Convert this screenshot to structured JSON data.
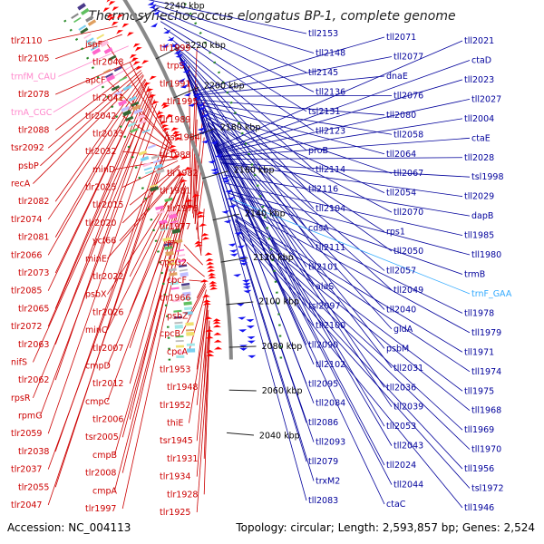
{
  "title": "Thermosynechococcus elongatus BP-1, complete genome",
  "footer": {
    "accession": "Accession: NC_004113",
    "summary": "Topology: circular; Length: 2,593,857 bp; Genes: 2,524"
  },
  "colors": {
    "forward_label": "#cc0000",
    "reverse_label": "#00009b",
    "rna_label": "#ff88cc",
    "rna_label_alt": "#33aaff",
    "forward_arrow": "#ff0000",
    "reverse_arrow": "#1414f0",
    "axis": "#888888",
    "dots": "#2a8a2a"
  },
  "ticks": [
    {
      "label": "2240 kbp",
      "angle": 30.0
    },
    {
      "label": "2220 kbp",
      "angle": 26.5
    },
    {
      "label": "2200 kbp",
      "angle": 23.0
    },
    {
      "label": "2180 kbp",
      "angle": 19.5
    },
    {
      "label": "2160 kbp",
      "angle": 16.0
    },
    {
      "label": "2140 kbp",
      "angle": 12.5
    },
    {
      "label": "2120 kbp",
      "angle": 9.0
    },
    {
      "label": "2100 kbp",
      "angle": 5.5
    },
    {
      "label": "2080 kbp",
      "angle": 2.0
    },
    {
      "label": "2060 kbp",
      "angle": -1.5
    },
    {
      "label": "2040 kbp",
      "angle": -5.0
    }
  ],
  "left_labels": [
    {
      "text": "tlr2105",
      "angle": 29.6
    },
    {
      "text": "tlr2110",
      "angle": 30.4
    },
    {
      "text": "tlr2078",
      "angle": 27.2
    },
    {
      "text": "trnA_CGC",
      "angle": 26.9,
      "kind": "rna"
    },
    {
      "text": "trnfM_CAU",
      "angle": 28.5,
      "kind": "rna"
    },
    {
      "text": "psbP",
      "angle": 26.0
    },
    {
      "text": "tlr2088",
      "angle": 26.6
    },
    {
      "text": "tsr2092",
      "angle": 26.2
    },
    {
      "text": "recA",
      "angle": 25.8
    },
    {
      "text": "tlr2066",
      "angle": 25.1
    },
    {
      "text": "tlr2074",
      "angle": 25.4
    },
    {
      "text": "tlr2082",
      "angle": 25.7
    },
    {
      "text": "tlr2065",
      "angle": 24.7
    },
    {
      "text": "tlr2073",
      "angle": 25.0
    },
    {
      "text": "tlr2081",
      "angle": 25.3
    },
    {
      "text": "tlr2085",
      "angle": 25.0
    },
    {
      "text": "tlr2063",
      "angle": 24.2
    },
    {
      "text": "tlr2072",
      "angle": 24.4
    },
    {
      "text": "tlr2062",
      "angle": 23.8
    },
    {
      "text": "nifS",
      "angle": 23.9
    },
    {
      "text": "rpsR",
      "angle": 23.5
    },
    {
      "text": "rpmG",
      "angle": 23.1
    },
    {
      "text": "tlr2059",
      "angle": 22.5
    },
    {
      "text": "tlr2038",
      "angle": 20.6
    },
    {
      "text": "tlr2037",
      "angle": 20.1
    },
    {
      "text": "ispF",
      "angle": 19.6
    },
    {
      "text": "tlr2047",
      "angle": 19.8
    },
    {
      "text": "tlr2055",
      "angle": 20.1
    },
    {
      "text": "apcF",
      "angle": 19.2
    },
    {
      "text": "tlr2041",
      "angle": 19.2
    },
    {
      "text": "tlr2048",
      "angle": 19.5
    },
    {
      "text": "tlr2033",
      "angle": 18.7
    },
    {
      "text": "tlr2042",
      "angle": 18.8
    },
    {
      "text": "minD",
      "angle": 18.2
    },
    {
      "text": "tlr2025",
      "angle": 18.0
    },
    {
      "text": "tlr2032",
      "angle": 18.3
    },
    {
      "text": "tlr2015",
      "angle": 17.6
    },
    {
      "text": "tlr2020",
      "angle": 17.5
    },
    {
      "text": "ycf66",
      "angle": 17.1
    },
    {
      "text": "minE",
      "angle": 17.0
    },
    {
      "text": "tlr2022",
      "angle": 16.9
    },
    {
      "text": "psbX",
      "angle": 16.6
    },
    {
      "text": "minC",
      "angle": 16.4
    },
    {
      "text": "tlr2026",
      "angle": 16.6
    },
    {
      "text": "cmpD",
      "angle": 16.0
    },
    {
      "text": "tlr2007",
      "angle": 16.1
    },
    {
      "text": "cmpC",
      "angle": 15.6
    },
    {
      "text": "tlr2006",
      "angle": 15.6
    },
    {
      "text": "tlr2012",
      "angle": 15.8
    },
    {
      "text": "cmpB",
      "angle": 15.0
    },
    {
      "text": "tsr2005",
      "angle": 15.1
    },
    {
      "text": "tlr1997",
      "angle": 14.5
    },
    {
      "text": "cmpA",
      "angle": 14.6
    },
    {
      "text": "tlr2008",
      "angle": 14.8
    },
    {
      "text": "trpS",
      "angle": 14.0
    },
    {
      "text": "tlr1999",
      "angle": 14.1
    },
    {
      "text": "tlr1991",
      "angle": 13.4
    },
    {
      "text": "tlr1989",
      "angle": 13.0
    },
    {
      "text": "tlr1995",
      "angle": 13.1
    },
    {
      "text": "tsr1984",
      "angle": 12.5
    },
    {
      "text": "tlr1988",
      "angle": 12.5
    },
    {
      "text": "tlr1982",
      "angle": 12.0
    },
    {
      "text": "tlr1981",
      "angle": 11.2
    },
    {
      "text": "tlr1976",
      "angle": 10.0
    },
    {
      "text": "tlr1977",
      "angle": 9.8
    },
    {
      "text": "ffh",
      "angle": 9.0
    },
    {
      "text": "cpcG2",
      "angle": 8.0
    },
    {
      "text": "cpcF",
      "angle": 7.6
    },
    {
      "text": "tlr1966",
      "angle": 7.6
    },
    {
      "text": "psbZ",
      "angle": 7.4
    },
    {
      "text": "cpcB",
      "angle": 7.2
    },
    {
      "text": "cpcA",
      "angle": 6.9
    },
    {
      "text": "tlr1953",
      "angle": 6.5
    },
    {
      "text": "tlr1948",
      "angle": 6.0
    },
    {
      "text": "tlr1952",
      "angle": 6.0
    },
    {
      "text": "thiE",
      "angle": 5.6
    },
    {
      "text": "tsr1945",
      "angle": 5.2
    },
    {
      "text": "tlr1931",
      "angle": 4.3
    },
    {
      "text": "tlr1934",
      "angle": 4.3
    },
    {
      "text": "tlr1928",
      "angle": 3.8
    },
    {
      "text": "tlr1925",
      "angle": 3.3
    }
  ],
  "right_labels": [
    {
      "text": "tll2153",
      "angle": 31.0
    },
    {
      "text": "tll2148",
      "angle": 30.6
    },
    {
      "text": "tll2145",
      "angle": 30.2
    },
    {
      "text": "tsl2131",
      "angle": 29.0
    },
    {
      "text": "tll2136",
      "angle": 29.5
    },
    {
      "text": "tll2123",
      "angle": 28.4
    },
    {
      "text": "proB",
      "angle": 27.6
    },
    {
      "text": "tll2114",
      "angle": 27.0
    },
    {
      "text": "tll2104",
      "angle": 26.6
    },
    {
      "text": "tll2116",
      "angle": 26.9
    },
    {
      "text": "cdsA",
      "angle": 26.3
    },
    {
      "text": "tll2101",
      "angle": 26.1
    },
    {
      "text": "tsl2097",
      "angle": 25.6
    },
    {
      "text": "alaS",
      "angle": 25.7
    },
    {
      "text": "tll2111",
      "angle": 26.2
    },
    {
      "text": "tll2090",
      "angle": 25.1
    },
    {
      "text": "tll2100",
      "angle": 25.3
    },
    {
      "text": "tll2095",
      "angle": 24.8
    },
    {
      "text": "tll2102",
      "angle": 25.0
    },
    {
      "text": "tll2084",
      "angle": 24.3
    },
    {
      "text": "tll2086",
      "angle": 24.0
    },
    {
      "text": "tll2079",
      "angle": 23.8
    },
    {
      "text": "tll2093",
      "angle": 24.0
    },
    {
      "text": "tll2083",
      "angle": 23.4
    },
    {
      "text": "trxM2",
      "angle": 23.5
    },
    {
      "text": "tll2071",
      "angle": 22.8
    },
    {
      "text": "dnaE",
      "angle": 22.5
    },
    {
      "text": "tll2076",
      "angle": 22.4
    },
    {
      "text": "tll2077",
      "angle": 22.6
    },
    {
      "text": "tll2058",
      "angle": 21.9
    },
    {
      "text": "tll2064",
      "angle": 21.7
    },
    {
      "text": "tll2080",
      "angle": 22.1
    },
    {
      "text": "tll2054",
      "angle": 21.2
    },
    {
      "text": "tll2067",
      "angle": 21.3
    },
    {
      "text": "rps1",
      "angle": 20.7
    },
    {
      "text": "tll2050",
      "angle": 20.7
    },
    {
      "text": "tll2070",
      "angle": 20.9
    },
    {
      "text": "tll2057",
      "angle": 20.4
    },
    {
      "text": "tll2040",
      "angle": 20.0
    },
    {
      "text": "tll2049",
      "angle": 20.1
    },
    {
      "text": "gldA",
      "angle": 19.9
    },
    {
      "text": "tll2031",
      "angle": 19.4
    },
    {
      "text": "tll2036",
      "angle": 19.4
    },
    {
      "text": "psbM",
      "angle": 19.6
    },
    {
      "text": "tll2039",
      "angle": 19.0
    },
    {
      "text": "tll2024",
      "angle": 18.6
    },
    {
      "text": "tll2043",
      "angle": 18.7
    },
    {
      "text": "tll2053",
      "angle": 19.0
    },
    {
      "text": "ctaC",
      "angle": 18.2
    },
    {
      "text": "tll2021",
      "angle": 18.1
    },
    {
      "text": "tll2044",
      "angle": 18.3
    },
    {
      "text": "ctaD",
      "angle": 17.8
    },
    {
      "text": "tll2023",
      "angle": 17.7
    },
    {
      "text": "tll2027",
      "angle": 17.6
    },
    {
      "text": "tll2004",
      "angle": 17.3
    },
    {
      "text": "ctaE",
      "angle": 17.3
    },
    {
      "text": "tll2028",
      "angle": 17.1
    },
    {
      "text": "tsl1998",
      "angle": 16.8
    },
    {
      "text": "tll2029",
      "angle": 16.8
    },
    {
      "text": "dapB",
      "angle": 15.8
    },
    {
      "text": "tll1985",
      "angle": 15.1
    },
    {
      "text": "tll1980",
      "angle": 14.5
    },
    {
      "text": "trmB",
      "angle": 14.3
    },
    {
      "text": "trnF_GAA",
      "angle": 13.9,
      "kind": "rna_alt"
    },
    {
      "text": "tll1978",
      "angle": 13.8
    },
    {
      "text": "tll1979",
      "angle": 13.5
    },
    {
      "text": "tll1971",
      "angle": 12.6
    },
    {
      "text": "tll1974",
      "angle": 12.5
    },
    {
      "text": "tll1975",
      "angle": 12.2
    },
    {
      "text": "tll1968",
      "angle": 12.1
    },
    {
      "text": "tll1969",
      "angle": 12.0
    },
    {
      "text": "tll1970",
      "angle": 11.8
    },
    {
      "text": "tll1956",
      "angle": 11.6
    },
    {
      "text": "tsl1972",
      "angle": 11.4
    },
    {
      "text": "tll1946",
      "angle": 11.0
    }
  ]
}
